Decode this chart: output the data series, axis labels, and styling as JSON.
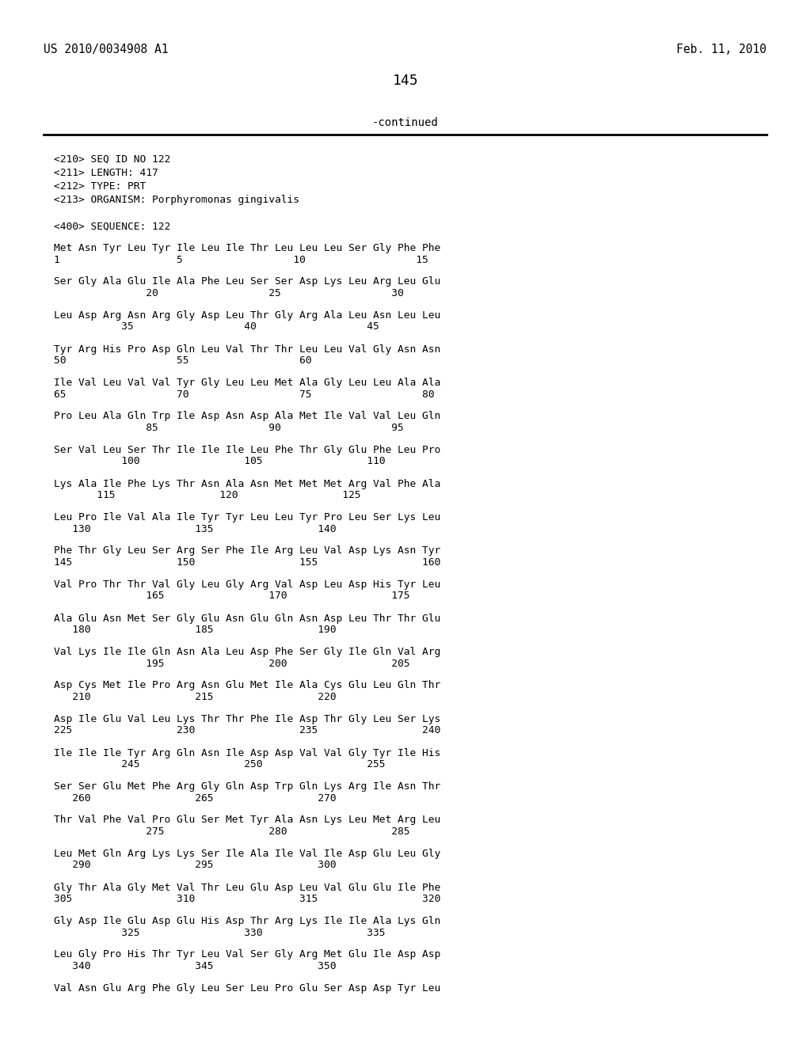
{
  "header_left": "US 2010/0034908 A1",
  "header_right": "Feb. 11, 2010",
  "page_number": "145",
  "continued_text": "-continued",
  "background_color": "#ffffff",
  "text_color": "#000000",
  "metadata": [
    "<210> SEQ ID NO 122",
    "<211> LENGTH: 417",
    "<212> TYPE: PRT",
    "<213> ORGANISM: Porphyromonas gingivalis",
    "",
    "<400> SEQUENCE: 122"
  ],
  "sequence_blocks": [
    [
      "Met Asn Tyr Leu Tyr Ile Leu Ile Thr Leu Leu Leu Ser Gly Phe Phe",
      "1                   5                  10                  15"
    ],
    [
      "Ser Gly Ala Glu Ile Ala Phe Leu Ser Ser Asp Lys Leu Arg Leu Glu",
      "               20                  25                  30"
    ],
    [
      "Leu Asp Arg Asn Arg Gly Asp Leu Thr Gly Arg Ala Leu Asn Leu Leu",
      "           35                  40                  45"
    ],
    [
      "Tyr Arg His Pro Asp Gln Leu Val Thr Thr Leu Leu Val Gly Asn Asn",
      "50                  55                  60"
    ],
    [
      "Ile Val Leu Val Val Tyr Gly Leu Leu Met Ala Gly Leu Leu Ala Ala",
      "65                  70                  75                  80"
    ],
    [
      "Pro Leu Ala Gln Trp Ile Asp Asn Asp Ala Met Ile Val Val Leu Gln",
      "               85                  90                  95"
    ],
    [
      "Ser Val Leu Ser Thr Ile Ile Ile Leu Phe Thr Gly Glu Phe Leu Pro",
      "           100                 105                 110"
    ],
    [
      "Lys Ala Ile Phe Lys Thr Asn Ala Asn Met Met Met Arg Val Phe Ala",
      "       115                 120                 125"
    ],
    [
      "Leu Pro Ile Val Ala Ile Tyr Tyr Leu Leu Tyr Pro Leu Ser Lys Leu",
      "   130                 135                 140"
    ],
    [
      "Phe Thr Gly Leu Ser Arg Ser Phe Ile Arg Leu Val Asp Lys Asn Tyr",
      "145                 150                 155                 160"
    ],
    [
      "Val Pro Thr Thr Val Gly Leu Gly Arg Val Asp Leu Asp His Tyr Leu",
      "               165                 170                 175"
    ],
    [
      "Ala Glu Asn Met Ser Gly Glu Asn Glu Gln Asn Asp Leu Thr Thr Glu",
      "   180                 185                 190"
    ],
    [
      "Val Lys Ile Ile Gln Asn Ala Leu Asp Phe Ser Gly Ile Gln Val Arg",
      "               195                 200                 205"
    ],
    [
      "Asp Cys Met Ile Pro Arg Asn Glu Met Ile Ala Cys Glu Leu Gln Thr",
      "   210                 215                 220"
    ],
    [
      "Asp Ile Glu Val Leu Lys Thr Thr Phe Ile Asp Thr Gly Leu Ser Lys",
      "225                 230                 235                 240"
    ],
    [
      "Ile Ile Ile Tyr Arg Gln Asn Ile Asp Asp Val Val Gly Tyr Ile His",
      "           245                 250                 255"
    ],
    [
      "Ser Ser Glu Met Phe Arg Gly Gln Asp Trp Gln Lys Arg Ile Asn Thr",
      "   260                 265                 270"
    ],
    [
      "Thr Val Phe Val Pro Glu Ser Met Tyr Ala Asn Lys Leu Met Arg Leu",
      "               275                 280                 285"
    ],
    [
      "Leu Met Gln Arg Lys Lys Ser Ile Ala Ile Val Ile Asp Glu Leu Gly",
      "   290                 295                 300"
    ],
    [
      "Gly Thr Ala Gly Met Val Thr Leu Glu Asp Leu Val Glu Glu Ile Phe",
      "305                 310                 315                 320"
    ],
    [
      "Gly Asp Ile Glu Asp Glu His Asp Thr Arg Lys Ile Ile Ala Lys Gln",
      "           325                 330                 335"
    ],
    [
      "Leu Gly Pro His Thr Tyr Leu Val Ser Gly Arg Met Glu Ile Asp Asp",
      "   340                 345                 350"
    ],
    [
      "Val Asn Glu Arg Phe Gly Leu Ser Leu Pro Glu Ser Asp Asp Tyr Leu",
      ""
    ]
  ]
}
